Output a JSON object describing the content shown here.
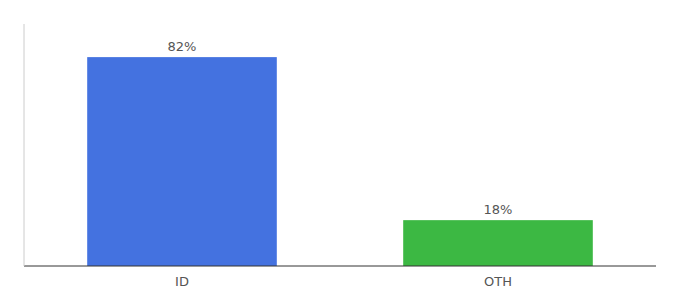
{
  "chart_data": {
    "type": "bar",
    "categories": [
      "ID",
      "OTH"
    ],
    "values": [
      82,
      18
    ],
    "value_labels": [
      "82%",
      "18%"
    ],
    "colors": [
      "#4472e0",
      "#3cb843"
    ],
    "ylim": [
      0,
      95
    ],
    "data_labels": true,
    "tick_labels": "x",
    "grid": false
  }
}
